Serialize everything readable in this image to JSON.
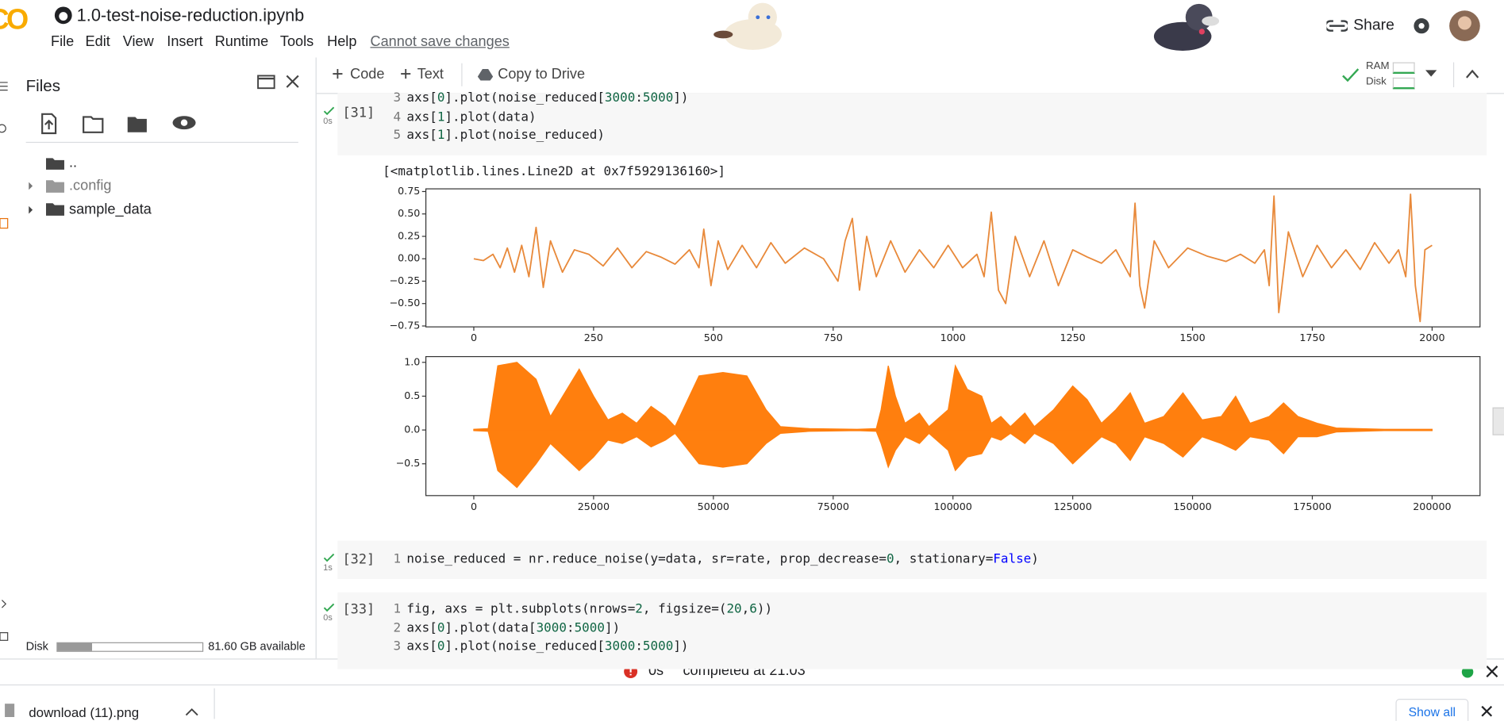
{
  "header": {
    "logo": "CO",
    "notebook_title": "1.0-test-noise-reduction.ipynb",
    "menu": [
      "File",
      "Edit",
      "View",
      "Insert",
      "Runtime",
      "Tools",
      "Help"
    ],
    "save_status": "Cannot save changes",
    "share": "Share"
  },
  "toolbar": {
    "add_code": "Code",
    "add_text": "Text",
    "copy_to_drive": "Copy to Drive",
    "ram": "RAM",
    "disk": "Disk"
  },
  "sidebar": {
    "title": "Files",
    "items": [
      "..",
      ".config",
      "sample_data"
    ],
    "disk_label": "Disk",
    "disk_available": "81.60 GB available"
  },
  "cells": [
    {
      "count": "[31]",
      "time": "0s",
      "output": "[<matplotlib.lines.Line2D at 0x7f5929136160>]",
      "lines": [
        {
          "n": 3,
          "code": [
            "axs[",
            {
              "text": "0",
              "color": "#116644"
            },
            "].plot(noise_reduced[",
            {
              "text": "3000",
              "color": "#116644"
            },
            ":",
            {
              "text": "5000",
              "color": "#116644"
            },
            "])"
          ]
        },
        {
          "n": 4,
          "code": [
            "axs[",
            {
              "text": "1",
              "color": "#116644"
            },
            "].plot(data)"
          ]
        },
        {
          "n": 5,
          "code": [
            "axs[",
            {
              "text": "1",
              "color": "#116644"
            },
            "].plot(noise_reduced)"
          ]
        }
      ]
    },
    {
      "count": "[32]",
      "time": "1s",
      "lines": [
        {
          "n": 1,
          "code": [
            "noise_reduced = nr.reduce_noise(y=data, sr=rate, prop_decrease=",
            {
              "text": "0",
              "color": "#116644"
            },
            ", stationary=",
            {
              "text": "False",
              "color": "#0000ff"
            },
            ")"
          ]
        }
      ]
    },
    {
      "count": "[33]",
      "time": "0s",
      "lines": [
        {
          "n": 1,
          "code": [
            "fig, axs = plt.subplots(nrows=",
            {
              "text": "2",
              "color": "#116644"
            },
            ", figsize=(",
            {
              "text": "20",
              "color": "#116644"
            },
            ",",
            {
              "text": "6",
              "color": "#116644"
            },
            "))"
          ]
        },
        {
          "n": 2,
          "code": [
            "axs[",
            {
              "text": "0",
              "color": "#116644"
            },
            "].plot(data[",
            {
              "text": "3000",
              "color": "#116644"
            },
            ":",
            {
              "text": "5000",
              "color": "#116644"
            },
            "])"
          ]
        },
        {
          "n": 3,
          "code": [
            "axs[",
            {
              "text": "0",
              "color": "#116644"
            },
            "].plot(noise_reduced[",
            {
              "text": "3000",
              "color": "#116644"
            },
            ":",
            {
              "text": "5000",
              "color": "#116644"
            },
            "])"
          ]
        }
      ]
    }
  ],
  "chart_data": [
    {
      "type": "line",
      "x": [
        0,
        20,
        40,
        55,
        70,
        85,
        100,
        115,
        130,
        145,
        160,
        185,
        210,
        240,
        270,
        300,
        330,
        360,
        390,
        420,
        450,
        470,
        480,
        495,
        510,
        530,
        560,
        590,
        620,
        650,
        690,
        730,
        760,
        775,
        790,
        805,
        820,
        840,
        870,
        900,
        930,
        960,
        990,
        1020,
        1050,
        1065,
        1080,
        1095,
        1110,
        1130,
        1160,
        1190,
        1220,
        1250,
        1280,
        1310,
        1340,
        1370,
        1380,
        1390,
        1400,
        1420,
        1450,
        1490,
        1530,
        1570,
        1600,
        1630,
        1650,
        1660,
        1670,
        1680,
        1700,
        1730,
        1760,
        1790,
        1820,
        1850,
        1880,
        1910,
        1930,
        1945,
        1955,
        1965,
        1975,
        1985,
        2000
      ],
      "series": [
        {
          "color": "#e8893a",
          "values": [
            0,
            -0.02,
            0.05,
            -0.1,
            0.12,
            -0.15,
            0.15,
            -0.2,
            0.35,
            -0.32,
            0.2,
            -0.15,
            0.1,
            0.05,
            -0.08,
            0.12,
            -0.1,
            0.08,
            0.02,
            -0.06,
            0.1,
            -0.1,
            0.33,
            -0.3,
            0.2,
            -0.12,
            0.15,
            -0.1,
            0.18,
            -0.05,
            0.12,
            0,
            -0.25,
            0.2,
            0.45,
            -0.35,
            0.25,
            -0.2,
            0.2,
            -0.15,
            0.1,
            -0.1,
            0.15,
            -0.1,
            0.05,
            -0.2,
            0.52,
            -0.35,
            -0.5,
            0.25,
            -0.2,
            0.2,
            -0.3,
            0.1,
            0.02,
            -0.05,
            0.1,
            -0.2,
            0.62,
            -0.3,
            -0.55,
            0.2,
            -0.1,
            0.12,
            0.03,
            -0.03,
            0.05,
            -0.05,
            0.1,
            -0.3,
            0.7,
            -0.6,
            0.3,
            -0.2,
            0.15,
            -0.1,
            0.1,
            -0.12,
            0.18,
            -0.05,
            0.1,
            -0.2,
            0.72,
            -0.3,
            -0.7,
            0.1,
            0.15
          ]
        }
      ],
      "xlim": [
        -100,
        2100
      ],
      "xticks": [
        0,
        250,
        500,
        750,
        1000,
        1250,
        1500,
        1750,
        2000
      ],
      "ylim": [
        -0.76,
        0.78
      ],
      "yticks": [
        {
          "value": 0.75,
          "label": "0.75"
        },
        {
          "value": 0.5,
          "label": "0.50"
        },
        {
          "value": 0.25,
          "label": "0.25"
        },
        {
          "value": 0,
          "label": "0.00"
        },
        {
          "value": -0.25,
          "label": "−0.25"
        },
        {
          "value": -0.5,
          "label": "−0.50"
        },
        {
          "value": -0.75,
          "label": "−0.75"
        }
      ]
    },
    {
      "type": "area",
      "x": [
        0,
        3000,
        5000,
        9000,
        13000,
        16000,
        19000,
        22000,
        25000,
        28000,
        31000,
        34000,
        37000,
        40000,
        42000,
        47000,
        52000,
        57000,
        61000,
        64000,
        70000,
        80000,
        84000,
        85000,
        86500,
        88000,
        90000,
        93000,
        95000,
        99000,
        100500,
        103000,
        106000,
        108000,
        110000,
        112000,
        115000,
        117000,
        121000,
        125000,
        128000,
        131000,
        134000,
        137000,
        140000,
        144000,
        148000,
        152000,
        156000,
        159000,
        162000,
        166000,
        169000,
        172000,
        176000,
        180000,
        190000,
        200000
      ],
      "series": [
        {
          "color": "#ff7f0e",
          "values": [
            0.01,
            0.02,
            0.95,
            1.0,
            0.75,
            0.2,
            0.55,
            0.9,
            0.5,
            0.15,
            0.25,
            0.1,
            0.35,
            0.2,
            0.05,
            0.8,
            0.85,
            0.8,
            0.3,
            0.05,
            0.02,
            0.01,
            0.02,
            0.3,
            0.95,
            0.5,
            0.1,
            0.25,
            0.05,
            0.3,
            0.95,
            0.6,
            0.5,
            0.1,
            0.2,
            0.05,
            0.25,
            0.05,
            0.3,
            0.65,
            0.45,
            0.1,
            0.3,
            0.55,
            0.1,
            0.2,
            0.55,
            0.15,
            0.2,
            0.5,
            0.1,
            0.2,
            0.4,
            0.2,
            0.1,
            0.03,
            0.01,
            0.01
          ]
        },
        {
          "color": "#ff7f0e",
          "values": [
            -0.01,
            -0.02,
            -0.6,
            -0.85,
            -0.5,
            -0.2,
            -0.4,
            -0.6,
            -0.4,
            -0.15,
            -0.2,
            -0.1,
            -0.25,
            -0.15,
            -0.05,
            -0.5,
            -0.55,
            -0.5,
            -0.2,
            -0.05,
            -0.02,
            -0.01,
            -0.02,
            -0.2,
            -0.55,
            -0.3,
            -0.1,
            -0.2,
            -0.05,
            -0.3,
            -0.6,
            -0.4,
            -0.35,
            -0.1,
            -0.15,
            -0.05,
            -0.2,
            -0.05,
            -0.2,
            -0.5,
            -0.3,
            -0.1,
            -0.2,
            -0.45,
            -0.1,
            -0.2,
            -0.4,
            -0.1,
            -0.2,
            -0.3,
            -0.1,
            -0.15,
            -0.35,
            -0.1,
            -0.1,
            -0.03,
            -0.01,
            -0.01
          ]
        }
      ],
      "xlim": [
        -10000,
        210000
      ],
      "xticks": [
        0,
        25000,
        50000,
        75000,
        100000,
        125000,
        150000,
        175000,
        200000
      ],
      "ylim": [
        -0.97,
        1.085
      ],
      "yticks": [
        {
          "value": 1,
          "label": "1.0"
        },
        {
          "value": 0.5,
          "label": "0.5"
        },
        {
          "value": 0,
          "label": "0.0"
        },
        {
          "value": -0.5,
          "label": "−0.5"
        }
      ]
    }
  ],
  "status": {
    "time": "0s",
    "completed": "completed at 21:03"
  },
  "downloads": {
    "file": "download (11).png",
    "show_all": "Show all"
  }
}
